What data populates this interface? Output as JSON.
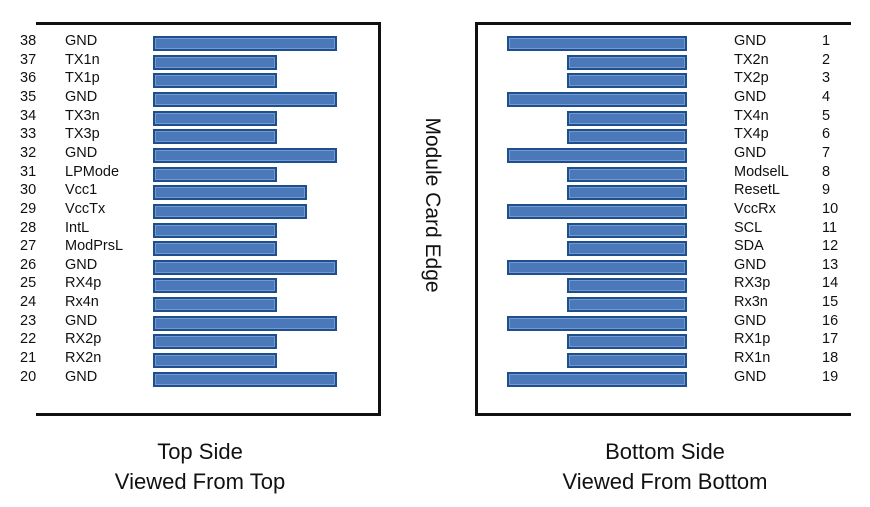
{
  "top_side": {
    "pins": [
      {
        "num": "38",
        "name": "GND",
        "pad": "long"
      },
      {
        "num": "37",
        "name": "TX1n",
        "pad": "short"
      },
      {
        "num": "36",
        "name": "TX1p",
        "pad": "short"
      },
      {
        "num": "35",
        "name": "GND",
        "pad": "long"
      },
      {
        "num": "34",
        "name": "TX3n",
        "pad": "short"
      },
      {
        "num": "33",
        "name": "TX3p",
        "pad": "short"
      },
      {
        "num": "32",
        "name": "GND",
        "pad": "long"
      },
      {
        "num": "31",
        "name": "LPMode",
        "pad": "short"
      },
      {
        "num": "30",
        "name": "Vcc1",
        "pad": "medium"
      },
      {
        "num": "29",
        "name": "VccTx",
        "pad": "medium"
      },
      {
        "num": "28",
        "name": "IntL",
        "pad": "short"
      },
      {
        "num": "27",
        "name": "ModPrsL",
        "pad": "short"
      },
      {
        "num": "26",
        "name": "GND",
        "pad": "long"
      },
      {
        "num": "25",
        "name": "RX4p",
        "pad": "short"
      },
      {
        "num": "24",
        "name": "Rx4n",
        "pad": "short"
      },
      {
        "num": "23",
        "name": "GND",
        "pad": "long"
      },
      {
        "num": "22",
        "name": "RX2p",
        "pad": "short"
      },
      {
        "num": "21",
        "name": "RX2n",
        "pad": "short"
      },
      {
        "num": "20",
        "name": "GND",
        "pad": "long"
      }
    ],
    "caption_line1": "Top Side",
    "caption_line2": "Viewed From Top"
  },
  "bottom_side": {
    "pins": [
      {
        "num": "1",
        "name": "GND",
        "pad": "long"
      },
      {
        "num": "2",
        "name": "TX2n",
        "pad": "short"
      },
      {
        "num": "3",
        "name": "TX2p",
        "pad": "short"
      },
      {
        "num": "4",
        "name": "GND",
        "pad": "long"
      },
      {
        "num": "5",
        "name": "TX4n",
        "pad": "short"
      },
      {
        "num": "6",
        "name": "TX4p",
        "pad": "short"
      },
      {
        "num": "7",
        "name": "GND",
        "pad": "long"
      },
      {
        "num": "8",
        "name": "ModselL",
        "pad": "short"
      },
      {
        "num": "9",
        "name": "ResetL",
        "pad": "short"
      },
      {
        "num": "10",
        "name": "VccRx",
        "pad": "long"
      },
      {
        "num": "11",
        "name": "SCL",
        "pad": "short"
      },
      {
        "num": "12",
        "name": "SDA",
        "pad": "short"
      },
      {
        "num": "13",
        "name": "GND",
        "pad": "long"
      },
      {
        "num": "14",
        "name": "RX3p",
        "pad": "short"
      },
      {
        "num": "15",
        "name": "Rx3n",
        "pad": "short"
      },
      {
        "num": "16",
        "name": "GND",
        "pad": "long"
      },
      {
        "num": "17",
        "name": "RX1p",
        "pad": "short"
      },
      {
        "num": "18",
        "name": "RX1n",
        "pad": "short"
      },
      {
        "num": "19",
        "name": "GND",
        "pad": "long"
      }
    ],
    "caption_line1": "Bottom Side",
    "caption_line2": "Viewed From Bottom"
  },
  "edge_label": "Module Card Edge",
  "colors": {
    "pad_fill": "#4a78b8",
    "pad_border": "#1f4f8a"
  }
}
